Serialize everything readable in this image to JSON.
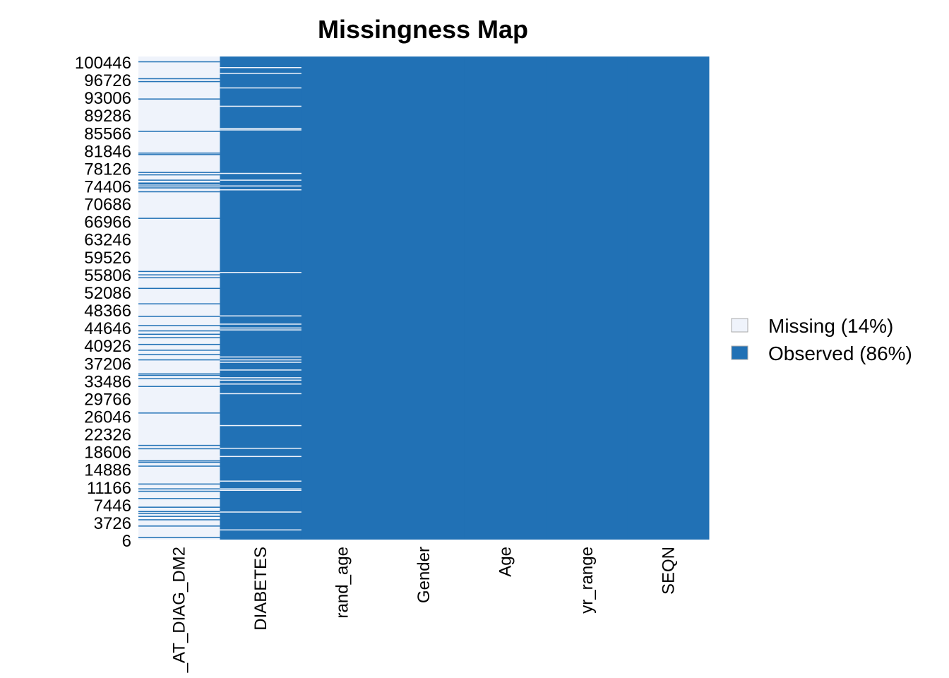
{
  "chart_data": {
    "type": "heatmap",
    "title": "Missingness Map",
    "xlabel": "",
    "ylabel": "",
    "colors": {
      "missing": "#EFF3FB",
      "observed": "#2171B5",
      "separator": "#ffffff"
    },
    "columns": [
      "_AT_DIAG_DM2",
      "DIABETES",
      "rand_age",
      "Gender",
      "Age",
      "yr_range",
      "SEQN"
    ],
    "row_tick_labels": [
      "100446",
      "96726",
      "93006",
      "89286",
      "85566",
      "81846",
      "78126",
      "74406",
      "70686",
      "66966",
      "63246",
      "59526",
      "55806",
      "52086",
      "48366",
      "44646",
      "40926",
      "37206",
      "33486",
      "29766",
      "26046",
      "22326",
      "18606",
      "14886",
      "11166",
      "7446",
      "3726",
      "6"
    ],
    "row_range": [
      6,
      100446
    ],
    "column_missingness": [
      {
        "column": "_AT_DIAG_DM2",
        "base": "missing",
        "observed_row_positions": [
          0.011,
          0.046,
          0.052,
          0.088,
          0.155,
          0.2,
          0.203,
          0.24,
          0.245,
          0.256,
          0.262,
          0.264,
          0.268,
          0.272,
          0.28,
          0.335,
          0.445,
          0.452,
          0.458,
          0.48,
          0.512,
          0.538,
          0.557,
          0.568,
          0.575,
          0.582,
          0.596,
          0.608,
          0.617,
          0.628,
          0.657,
          0.66,
          0.667,
          0.683,
          0.738,
          0.805,
          0.812,
          0.837,
          0.84,
          0.848,
          0.885,
          0.895,
          0.9,
          0.915,
          0.933,
          0.942,
          0.946,
          0.952,
          0.959,
          0.972,
          0.996
        ]
      },
      {
        "column": "DIABETES",
        "base": "observed",
        "missing_row_positions": [
          0.023,
          0.035,
          0.065,
          0.103,
          0.149,
          0.152,
          0.242,
          0.256,
          0.268,
          0.276,
          0.447,
          0.537,
          0.554,
          0.562,
          0.566,
          0.622,
          0.628,
          0.633,
          0.649,
          0.665,
          0.67,
          0.678,
          0.698,
          0.764,
          0.811,
          0.828,
          0.879,
          0.895,
          0.898,
          0.943,
          0.98
        ]
      },
      {
        "column": "rand_age",
        "base": "observed"
      },
      {
        "column": "Gender",
        "base": "observed"
      },
      {
        "column": "Age",
        "base": "observed"
      },
      {
        "column": "yr_range",
        "base": "observed"
      },
      {
        "column": "SEQN",
        "base": "observed"
      }
    ],
    "legend": {
      "position": "right",
      "items": [
        {
          "label": "Missing (14%)",
          "key": "missing"
        },
        {
          "label": "Observed (86%)",
          "key": "observed"
        }
      ]
    }
  }
}
